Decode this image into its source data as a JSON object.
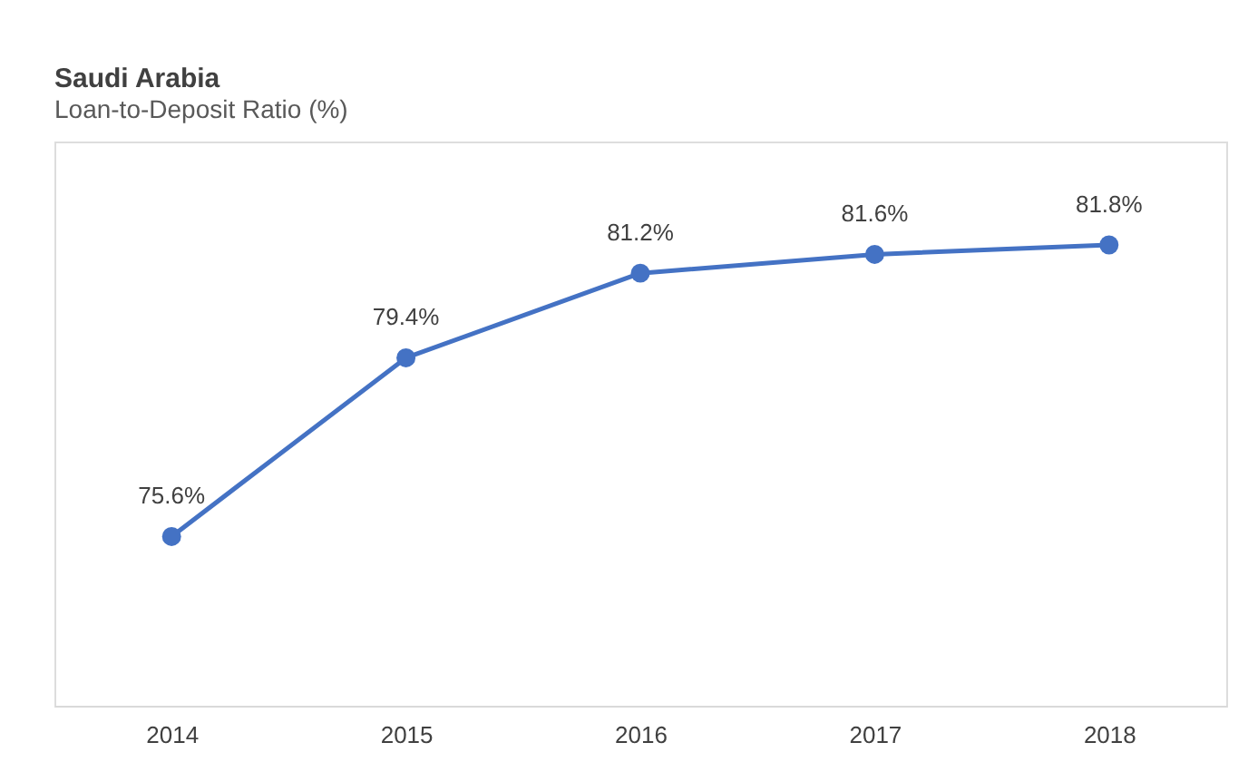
{
  "chart_data": {
    "type": "line",
    "title": "Saudi Arabia",
    "subtitle": "Loan-to-Deposit  Ratio (%)",
    "categories": [
      "2014",
      "2015",
      "2016",
      "2017",
      "2018"
    ],
    "series": [
      {
        "color": "#4472c4",
        "values": [
          75.6,
          79.4,
          81.2,
          81.6,
          81.8
        ],
        "value_labels": [
          "75.6%",
          "79.4%",
          "81.2%",
          "81.6%",
          "81.8%"
        ]
      }
    ],
    "ylim": [
      72,
      84
    ],
    "tick_labels": "x",
    "marker": "circle",
    "line_style": "solid",
    "grid": false,
    "legend": false
  }
}
